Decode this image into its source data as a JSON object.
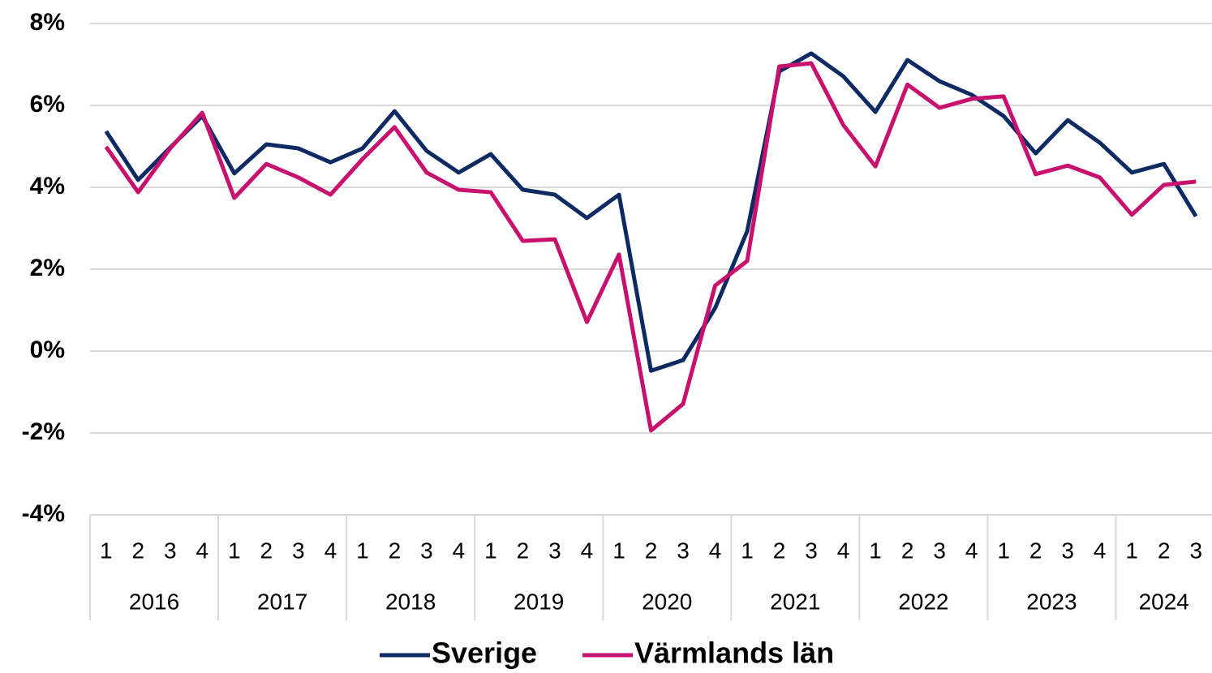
{
  "chart_data": {
    "type": "line",
    "categories": [
      "1",
      "2",
      "3",
      "4",
      "1",
      "2",
      "3",
      "4",
      "1",
      "2",
      "3",
      "4",
      "1",
      "2",
      "3",
      "4",
      "1",
      "2",
      "3",
      "4",
      "1",
      "2",
      "3",
      "4",
      "1",
      "2",
      "3",
      "4",
      "1",
      "2",
      "3",
      "4",
      "1",
      "2",
      "3"
    ],
    "years": [
      "2016",
      "2017",
      "2018",
      "2019",
      "2020",
      "2021",
      "2022",
      "2023",
      "2024"
    ],
    "series": [
      {
        "name": "Sverige",
        "color": "#0d2a63",
        "values": [
          5.37,
          4.18,
          4.97,
          5.74,
          4.34,
          5.05,
          4.95,
          4.61,
          4.95,
          5.86,
          4.89,
          4.36,
          4.81,
          3.94,
          3.82,
          3.25,
          3.82,
          -0.48,
          -0.22,
          1.05,
          2.93,
          6.83,
          7.27,
          6.71,
          5.84,
          7.11,
          6.59,
          6.26,
          5.74,
          4.83,
          5.64,
          5.09,
          4.36,
          4.57,
          3.29
        ]
      },
      {
        "name": "Värmlands län",
        "color": "#c8106e",
        "values": [
          4.99,
          3.88,
          4.95,
          5.82,
          3.74,
          4.57,
          4.24,
          3.82,
          4.69,
          5.47,
          4.36,
          3.94,
          3.88,
          2.69,
          2.73,
          0.71,
          2.36,
          -1.94,
          -1.29,
          1.6,
          2.2,
          6.95,
          7.03,
          5.52,
          4.51,
          6.51,
          5.94,
          6.16,
          6.22,
          4.32,
          4.53,
          4.24,
          3.33,
          4.06,
          4.14
        ]
      }
    ],
    "ylim": [
      -4,
      8
    ],
    "yticks": [
      {
        "value": -4,
        "label": "-4%"
      },
      {
        "value": -2,
        "label": "-2%"
      },
      {
        "value": 0,
        "label": "0%"
      },
      {
        "value": 2,
        "label": "2%"
      },
      {
        "value": 4,
        "label": "4%"
      },
      {
        "value": 6,
        "label": "6%"
      },
      {
        "value": 8,
        "label": "8%"
      }
    ],
    "grid": true,
    "legend": "bottom"
  }
}
